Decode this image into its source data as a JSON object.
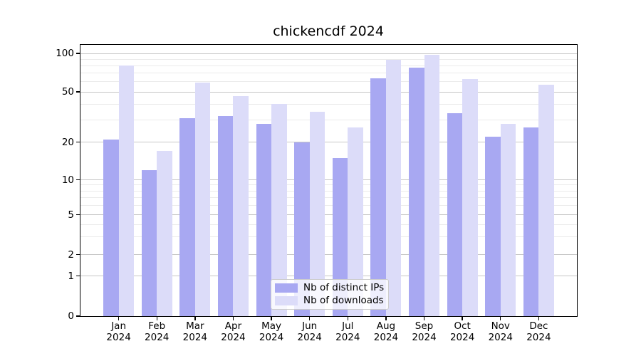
{
  "chart_data": {
    "type": "bar",
    "title": "chickencdf 2024",
    "categories": [
      "Jan 2024",
      "Feb 2024",
      "Mar 2024",
      "Apr 2024",
      "May 2024",
      "Jun 2024",
      "Jul 2024",
      "Aug 2024",
      "Sep 2024",
      "Oct 2024",
      "Nov 2024",
      "Dec 2024"
    ],
    "series": [
      {
        "name": "Nb of distinct IPs",
        "color": "#a8a8f2",
        "values": [
          21,
          12,
          31,
          32,
          28,
          20,
          15,
          64,
          77,
          34,
          22,
          26
        ]
      },
      {
        "name": "Nb of downloads",
        "color": "#dcdcf9",
        "values": [
          80,
          17,
          59,
          46,
          40,
          35,
          26,
          89,
          97,
          63,
          28,
          57
        ]
      }
    ],
    "yscale": "symlog",
    "yticks": [
      0,
      1,
      2,
      5,
      10,
      20,
      50,
      100
    ],
    "ylim": [
      0,
      110
    ],
    "grid": "horizontal major and minor gridlines",
    "legend_position": "lower center",
    "colors": {
      "distinct_ips_bar": "#a8a8f2",
      "downloads_bar": "#dcdcf9",
      "major_grid": "#c6c6c6",
      "minor_grid": "#ebebeb",
      "axis": "#000000"
    }
  }
}
